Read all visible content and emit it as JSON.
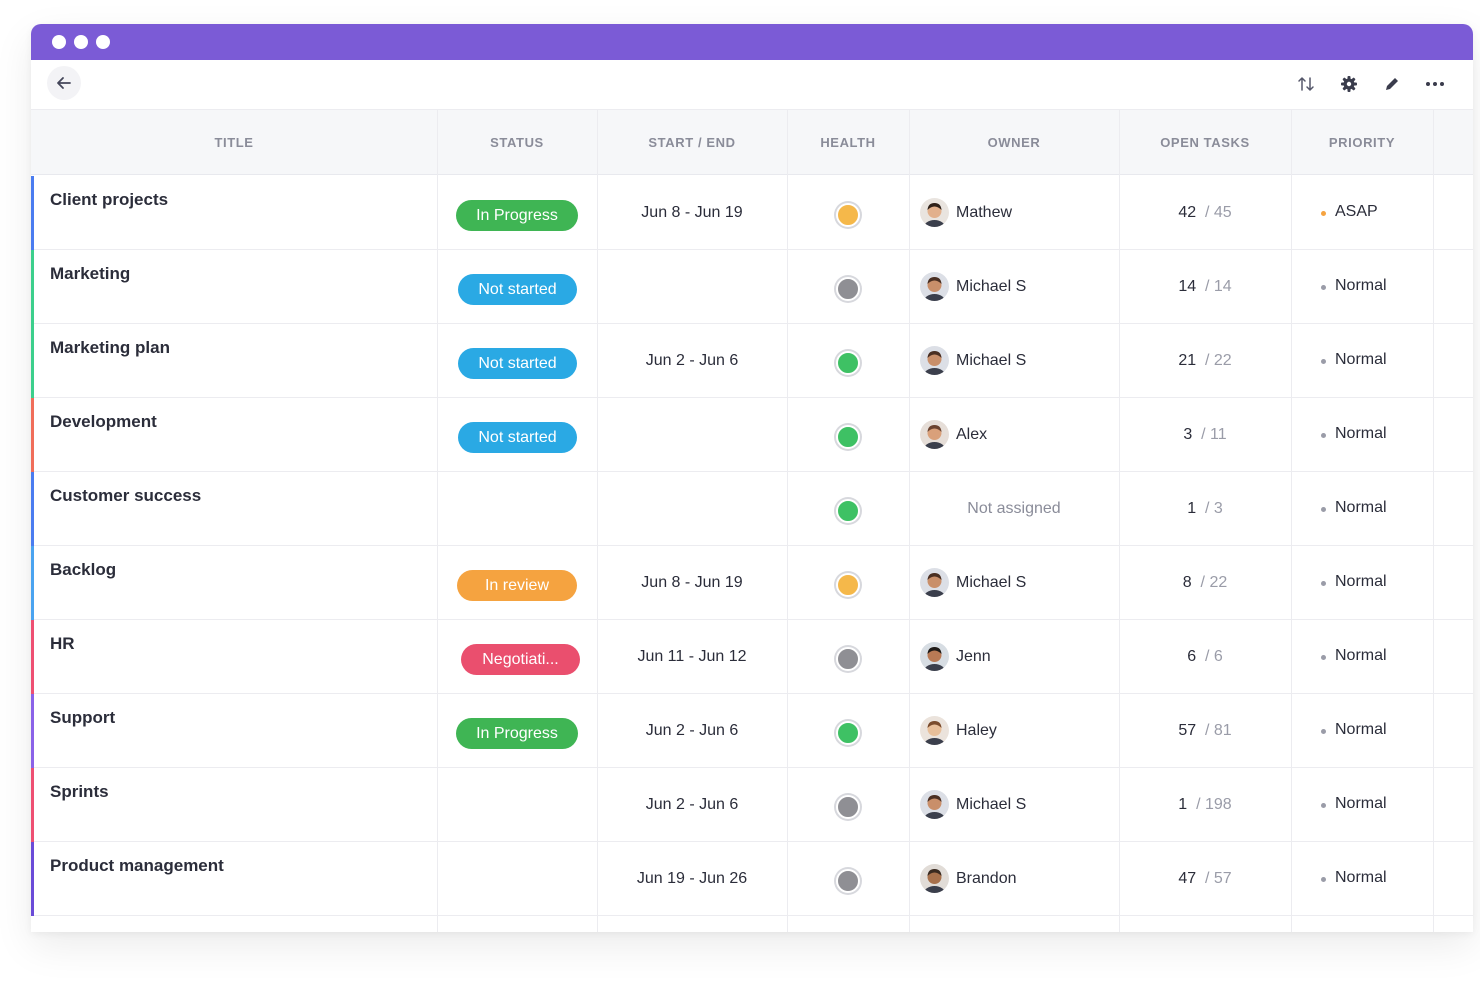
{
  "window": {
    "accent_color": "#7b5bd6"
  },
  "toolbar": {
    "back_icon": "arrow-left-icon",
    "icons": [
      "sort-icon",
      "gear-icon",
      "pencil-icon",
      "more-horizontal-icon"
    ]
  },
  "table": {
    "columns": [
      "TITLE",
      "STATUS",
      "START / END",
      "HEALTH",
      "OWNER",
      "OPEN TASKS",
      "PRIORITY"
    ],
    "rows": [
      {
        "title": "Client projects",
        "accent": "#4a7cf0",
        "status": "In Progress",
        "status_color": "#3fb554",
        "dates": "Jun 8 - Jun 19",
        "health": "#f5b84a",
        "owner": "Mathew",
        "tasks_open": "42",
        "tasks_total": "45",
        "priority": "ASAP",
        "priority_color": "#f5a340"
      },
      {
        "title": "Marketing",
        "accent": "#3ccf8c",
        "status": "Not started",
        "status_color": "#2aa9e4",
        "dates": "",
        "health": "#8f8f94",
        "owner": "Michael S",
        "tasks_open": "14",
        "tasks_total": "14",
        "priority": "Normal",
        "priority_color": "#9a9ca8"
      },
      {
        "title": "Marketing plan",
        "accent": "#3ccf8c",
        "status": "Not started",
        "status_color": "#2aa9e4",
        "dates": "Jun 2 - Jun 6",
        "health": "#3ec164",
        "owner": "Michael S",
        "tasks_open": "21",
        "tasks_total": "22",
        "priority": "Normal",
        "priority_color": "#9a9ca8"
      },
      {
        "title": "Development",
        "accent": "#f06d5a",
        "status": "Not started",
        "status_color": "#2aa9e4",
        "dates": "",
        "health": "#3ec164",
        "owner": "Alex",
        "tasks_open": "3",
        "tasks_total": "11",
        "priority": "Normal",
        "priority_color": "#9a9ca8"
      },
      {
        "title": "Customer success",
        "accent": "#4a7cf0",
        "status": "",
        "status_color": "",
        "dates": "",
        "health": "#3ec164",
        "owner": "Not assigned",
        "tasks_open": "1",
        "tasks_total": "3",
        "priority": "Normal",
        "priority_color": "#9a9ca8"
      },
      {
        "title": "Backlog",
        "accent": "#4aa3f0",
        "status": "In review",
        "status_color": "#f5a340",
        "dates": "Jun 8 - Jun 19",
        "health": "#f5b84a",
        "owner": "Michael S",
        "tasks_open": "8",
        "tasks_total": "22",
        "priority": "Normal",
        "priority_color": "#9a9ca8"
      },
      {
        "title": "HR",
        "accent": "#ee4f72",
        "status": "Negotiati...",
        "status_color": "#ea4f6e",
        "dates": "Jun 11 - Jun 12",
        "health": "#8f8f94",
        "owner": "Jenn",
        "tasks_open": "6",
        "tasks_total": "6",
        "priority": "Normal",
        "priority_color": "#9a9ca8"
      },
      {
        "title": "Support",
        "accent": "#8a62e8",
        "status": "In Progress",
        "status_color": "#3fb554",
        "dates": "Jun 2 - Jun 6",
        "health": "#3ec164",
        "owner": "Haley",
        "tasks_open": "57",
        "tasks_total": "81",
        "priority": "Normal",
        "priority_color": "#9a9ca8"
      },
      {
        "title": "Sprints",
        "accent": "#ee4f72",
        "status": "",
        "status_color": "",
        "dates": "Jun 2 - Jun 6",
        "health": "#8f8f94",
        "owner": "Michael S",
        "tasks_open": "1",
        "tasks_total": "198",
        "priority": "Normal",
        "priority_color": "#9a9ca8"
      },
      {
        "title": "Product management",
        "accent": "#6a4bd8",
        "status": "",
        "status_color": "",
        "dates": "Jun 19 - Jun 26",
        "health": "#8f8f94",
        "owner": "Brandon",
        "tasks_open": "47",
        "tasks_total": "57",
        "priority": "Normal",
        "priority_color": "#9a9ca8"
      }
    ]
  }
}
